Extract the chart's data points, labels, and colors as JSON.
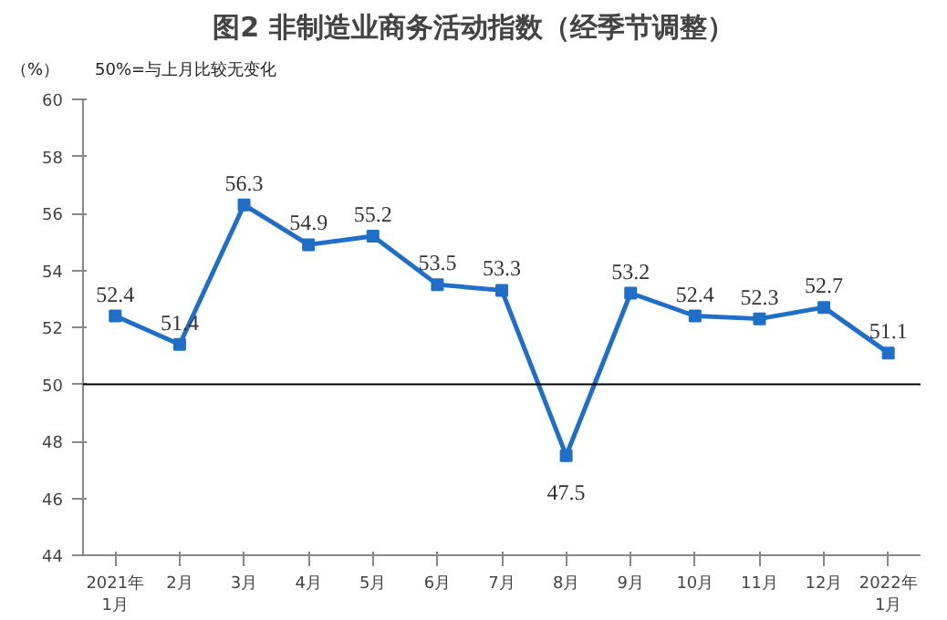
{
  "chart_data": {
    "type": "line",
    "title": "图2  非制造业商务活动指数（经季节调整）",
    "ylabel": "（%）",
    "annotations": [
      "50%=与上月比较无变化"
    ],
    "categories": [
      "2021年\n1月",
      "2月",
      "3月",
      "4月",
      "5月",
      "6月",
      "7月",
      "8月",
      "9月",
      "10月",
      "11月",
      "12月",
      "2022年\n1月"
    ],
    "series": [
      {
        "color": "#1f6fc8",
        "values": [
          52.4,
          51.4,
          56.3,
          54.9,
          55.2,
          53.5,
          53.3,
          47.5,
          53.2,
          52.4,
          52.3,
          52.7,
          51.1
        ]
      }
    ],
    "ylim": [
      44,
      60
    ],
    "yticks": [
      44,
      46,
      48,
      50,
      52,
      54,
      56,
      58,
      60
    ],
    "ref_lines": [
      {
        "axis": "y",
        "value": 50,
        "color": "#000000"
      }
    ],
    "data_labels": true,
    "marker": "square",
    "line_style": "solid",
    "grid": false
  }
}
